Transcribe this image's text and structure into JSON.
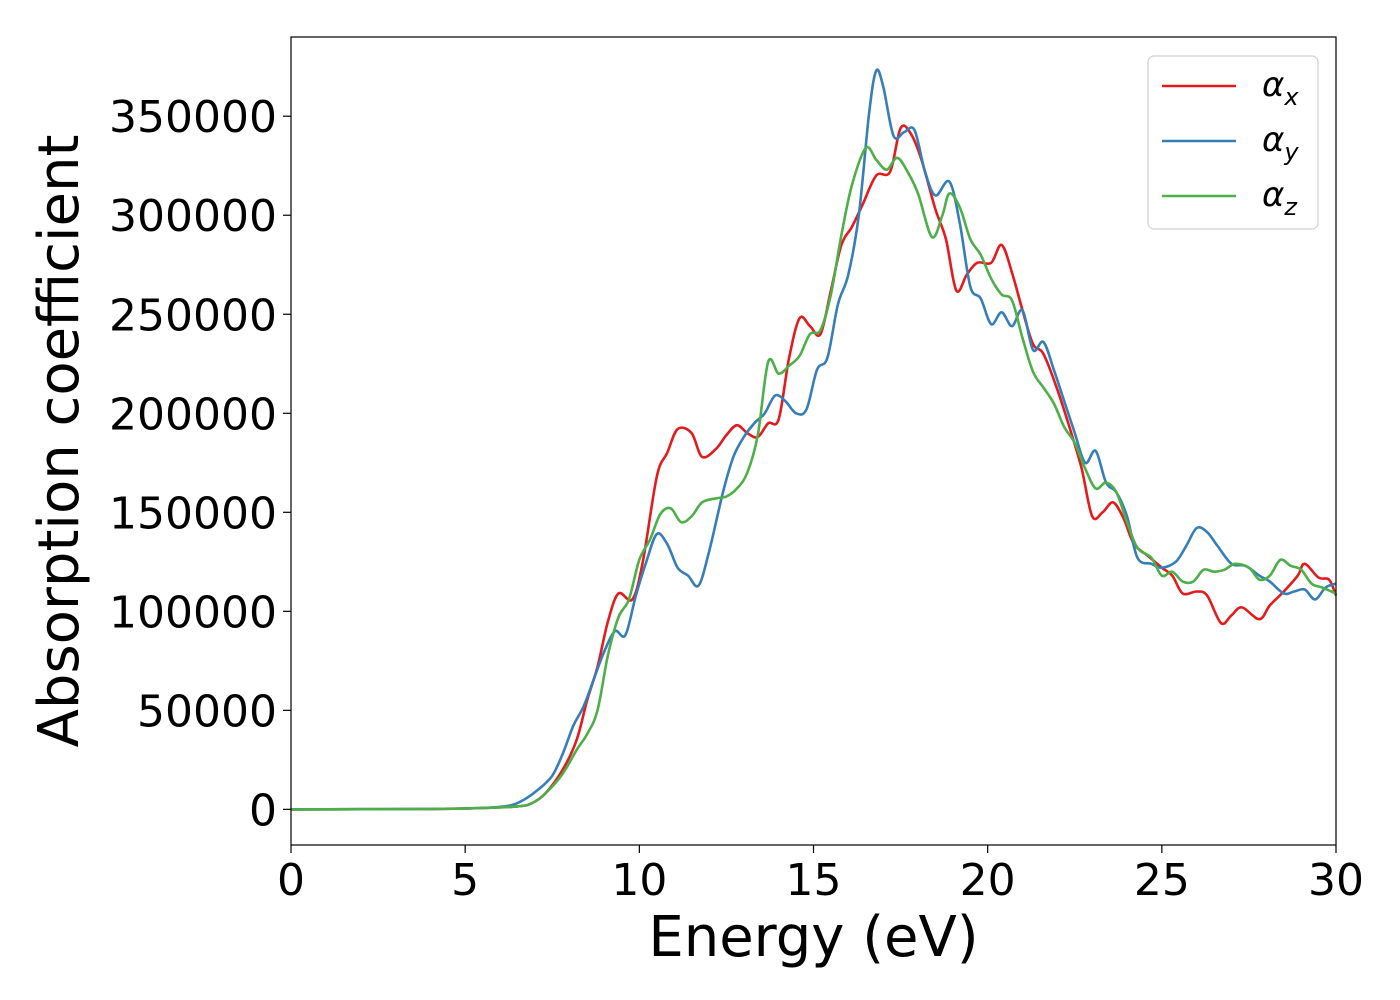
{
  "chart_data": {
    "type": "line",
    "title": "",
    "xlabel": "Energy (eV)",
    "ylabel": "Absorption coefficient",
    "xlim": [
      0,
      30
    ],
    "ylim": [
      -18000,
      390000
    ],
    "xticks": [
      0,
      5,
      10,
      15,
      20,
      25,
      30
    ],
    "yticks": [
      0,
      50000,
      100000,
      150000,
      200000,
      250000,
      300000,
      350000
    ],
    "grid": false,
    "legend_position": "upper right",
    "series": [
      {
        "name": "α",
        "subscript": "x",
        "color": "#e41a1c",
        "points": [
          [
            0,
            0
          ],
          [
            4,
            200
          ],
          [
            5.5,
            700
          ],
          [
            6.5,
            1500
          ],
          [
            6.9,
            3000
          ],
          [
            7.3,
            8000
          ],
          [
            7.8,
            20000
          ],
          [
            8.2,
            35000
          ],
          [
            8.5,
            55000
          ],
          [
            8.8,
            72000
          ],
          [
            9.1,
            95000
          ],
          [
            9.4,
            109000
          ],
          [
            9.8,
            106000
          ],
          [
            10.1,
            125000
          ],
          [
            10.5,
            168000
          ],
          [
            10.8,
            180000
          ],
          [
            11.1,
            192000
          ],
          [
            11.5,
            190000
          ],
          [
            11.8,
            178000
          ],
          [
            12.2,
            182000
          ],
          [
            12.5,
            189000
          ],
          [
            12.8,
            194000
          ],
          [
            13.1,
            190000
          ],
          [
            13.4,
            188000
          ],
          [
            13.7,
            195000
          ],
          [
            14.0,
            197000
          ],
          [
            14.3,
            228000
          ],
          [
            14.6,
            248000
          ],
          [
            14.9,
            244000
          ],
          [
            15.2,
            240000
          ],
          [
            15.5,
            262000
          ],
          [
            15.8,
            285000
          ],
          [
            16.1,
            294000
          ],
          [
            16.4,
            305000
          ],
          [
            16.8,
            320000
          ],
          [
            17.2,
            322000
          ],
          [
            17.5,
            344000
          ],
          [
            17.8,
            341000
          ],
          [
            18.1,
            328000
          ],
          [
            18.5,
            303000
          ],
          [
            18.8,
            288000
          ],
          [
            19.1,
            262000
          ],
          [
            19.4,
            270000
          ],
          [
            19.7,
            276000
          ],
          [
            20.1,
            276000
          ],
          [
            20.4,
            285000
          ],
          [
            20.7,
            271000
          ],
          [
            21.0,
            252000
          ],
          [
            21.3,
            235000
          ],
          [
            21.6,
            230000
          ],
          [
            22.0,
            212000
          ],
          [
            22.4,
            190000
          ],
          [
            22.7,
            172000
          ],
          [
            23.0,
            148000
          ],
          [
            23.3,
            150000
          ],
          [
            23.6,
            155000
          ],
          [
            23.9,
            147000
          ],
          [
            24.2,
            134000
          ],
          [
            24.6,
            128000
          ],
          [
            25.0,
            122000
          ],
          [
            25.3,
            118000
          ],
          [
            25.6,
            109000
          ],
          [
            26.0,
            110000
          ],
          [
            26.3,
            108000
          ],
          [
            26.7,
            94000
          ],
          [
            27.0,
            98000
          ],
          [
            27.3,
            102000
          ],
          [
            27.8,
            96000
          ],
          [
            28.1,
            103000
          ],
          [
            28.5,
            110000
          ],
          [
            28.9,
            118000
          ],
          [
            29.1,
            124000
          ],
          [
            29.5,
            117000
          ],
          [
            29.8,
            116000
          ],
          [
            30.0,
            108000
          ]
        ]
      },
      {
        "name": "α",
        "subscript": "y",
        "color": "#377eb8",
        "points": [
          [
            0,
            0
          ],
          [
            4,
            200
          ],
          [
            5.5,
            700
          ],
          [
            6.3,
            2000
          ],
          [
            6.7,
            5000
          ],
          [
            7.1,
            10000
          ],
          [
            7.5,
            17000
          ],
          [
            7.8,
            28000
          ],
          [
            8.1,
            42000
          ],
          [
            8.4,
            52000
          ],
          [
            8.7,
            66000
          ],
          [
            9.0,
            80000
          ],
          [
            9.3,
            90000
          ],
          [
            9.6,
            88000
          ],
          [
            9.9,
            108000
          ],
          [
            10.2,
            125000
          ],
          [
            10.5,
            139000
          ],
          [
            10.8,
            134000
          ],
          [
            11.1,
            122000
          ],
          [
            11.4,
            118000
          ],
          [
            11.7,
            113000
          ],
          [
            12.0,
            130000
          ],
          [
            12.4,
            160000
          ],
          [
            12.7,
            178000
          ],
          [
            13.0,
            188000
          ],
          [
            13.3,
            195000
          ],
          [
            13.6,
            200000
          ],
          [
            13.9,
            209000
          ],
          [
            14.2,
            206000
          ],
          [
            14.5,
            200000
          ],
          [
            14.8,
            202000
          ],
          [
            15.1,
            222000
          ],
          [
            15.4,
            228000
          ],
          [
            15.7,
            255000
          ],
          [
            16.0,
            270000
          ],
          [
            16.3,
            300000
          ],
          [
            16.6,
            352000
          ],
          [
            16.8,
            373000
          ],
          [
            17.0,
            365000
          ],
          [
            17.3,
            340000
          ],
          [
            17.6,
            342000
          ],
          [
            17.9,
            343000
          ],
          [
            18.2,
            322000
          ],
          [
            18.5,
            310000
          ],
          [
            18.9,
            317000
          ],
          [
            19.2,
            296000
          ],
          [
            19.5,
            264000
          ],
          [
            19.8,
            258000
          ],
          [
            20.1,
            245000
          ],
          [
            20.4,
            251000
          ],
          [
            20.7,
            244000
          ],
          [
            21.0,
            252000
          ],
          [
            21.3,
            232000
          ],
          [
            21.6,
            236000
          ],
          [
            21.9,
            222000
          ],
          [
            22.2,
            206000
          ],
          [
            22.5,
            190000
          ],
          [
            22.8,
            175000
          ],
          [
            23.1,
            181000
          ],
          [
            23.4,
            165000
          ],
          [
            23.7,
            160000
          ],
          [
            24.0,
            148000
          ],
          [
            24.3,
            127000
          ],
          [
            24.7,
            124000
          ],
          [
            25.0,
            122000
          ],
          [
            25.4,
            125000
          ],
          [
            25.7,
            133000
          ],
          [
            26.0,
            142000
          ],
          [
            26.3,
            140000
          ],
          [
            26.6,
            133000
          ],
          [
            27.0,
            124000
          ],
          [
            27.4,
            123000
          ],
          [
            27.8,
            118000
          ],
          [
            28.1,
            115000
          ],
          [
            28.5,
            109000
          ],
          [
            28.8,
            110000
          ],
          [
            29.1,
            111000
          ],
          [
            29.4,
            106000
          ],
          [
            29.7,
            112000
          ],
          [
            30.0,
            114000
          ]
        ]
      },
      {
        "name": "α",
        "subscript": "z",
        "color": "#4daf4a",
        "points": [
          [
            0,
            0
          ],
          [
            4,
            200
          ],
          [
            5.5,
            700
          ],
          [
            6.5,
            1500
          ],
          [
            6.9,
            3000
          ],
          [
            7.3,
            8000
          ],
          [
            7.8,
            18000
          ],
          [
            8.2,
            30000
          ],
          [
            8.5,
            38000
          ],
          [
            8.8,
            50000
          ],
          [
            9.1,
            78000
          ],
          [
            9.4,
            97000
          ],
          [
            9.7,
            106000
          ],
          [
            10.0,
            126000
          ],
          [
            10.3,
            136000
          ],
          [
            10.6,
            149000
          ],
          [
            10.9,
            152000
          ],
          [
            11.2,
            145000
          ],
          [
            11.5,
            148000
          ],
          [
            11.8,
            155000
          ],
          [
            12.2,
            157000
          ],
          [
            12.5,
            158000
          ],
          [
            12.8,
            162000
          ],
          [
            13.1,
            170000
          ],
          [
            13.4,
            189000
          ],
          [
            13.7,
            226000
          ],
          [
            14.0,
            220000
          ],
          [
            14.3,
            224000
          ],
          [
            14.6,
            229000
          ],
          [
            14.9,
            240000
          ],
          [
            15.2,
            242000
          ],
          [
            15.5,
            260000
          ],
          [
            15.8,
            290000
          ],
          [
            16.1,
            315000
          ],
          [
            16.5,
            334000
          ],
          [
            16.8,
            328000
          ],
          [
            17.1,
            323000
          ],
          [
            17.4,
            329000
          ],
          [
            17.7,
            322000
          ],
          [
            18.0,
            311000
          ],
          [
            18.4,
            289000
          ],
          [
            18.7,
            300000
          ],
          [
            18.9,
            311000
          ],
          [
            19.2,
            304000
          ],
          [
            19.5,
            288000
          ],
          [
            19.8,
            280000
          ],
          [
            20.1,
            268000
          ],
          [
            20.4,
            260000
          ],
          [
            20.7,
            257000
          ],
          [
            21.0,
            238000
          ],
          [
            21.3,
            221000
          ],
          [
            21.6,
            213000
          ],
          [
            21.9,
            205000
          ],
          [
            22.2,
            193000
          ],
          [
            22.5,
            185000
          ],
          [
            22.8,
            172000
          ],
          [
            23.1,
            162000
          ],
          [
            23.4,
            165000
          ],
          [
            23.7,
            160000
          ],
          [
            24.0,
            145000
          ],
          [
            24.3,
            132000
          ],
          [
            24.7,
            127000
          ],
          [
            25.0,
            118000
          ],
          [
            25.3,
            120000
          ],
          [
            25.6,
            115000
          ],
          [
            25.9,
            115000
          ],
          [
            26.2,
            121000
          ],
          [
            26.5,
            120000
          ],
          [
            26.8,
            121000
          ],
          [
            27.1,
            124000
          ],
          [
            27.5,
            122000
          ],
          [
            27.8,
            116000
          ],
          [
            28.1,
            118000
          ],
          [
            28.4,
            126000
          ],
          [
            28.7,
            123000
          ],
          [
            29.0,
            121000
          ],
          [
            29.3,
            114000
          ],
          [
            29.6,
            112000
          ],
          [
            30.0,
            109000
          ]
        ]
      }
    ]
  }
}
